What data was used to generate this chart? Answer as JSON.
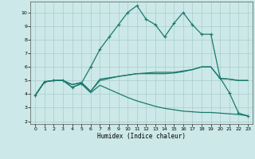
{
  "xlabel": "Humidex (Indice chaleur)",
  "ylabel": "",
  "bg_color": "#cce8e8",
  "grid_color": "#aacccc",
  "line_color": "#1a7a6e",
  "xlim": [
    -0.5,
    23.5
  ],
  "ylim": [
    1.8,
    10.8
  ],
  "yticks": [
    2,
    3,
    4,
    5,
    6,
    7,
    8,
    9,
    10
  ],
  "xticks": [
    0,
    1,
    2,
    3,
    4,
    5,
    6,
    7,
    8,
    9,
    10,
    11,
    12,
    13,
    14,
    15,
    16,
    17,
    18,
    19,
    20,
    21,
    22,
    23
  ],
  "line1_x": [
    0,
    1,
    2,
    3,
    4,
    5,
    6,
    7,
    8,
    9,
    10,
    11,
    12,
    13,
    14,
    15,
    16,
    17,
    18,
    19,
    20,
    21,
    22,
    23
  ],
  "line1_y": [
    3.9,
    4.9,
    5.0,
    5.0,
    4.5,
    4.8,
    6.0,
    7.3,
    8.2,
    9.1,
    10.0,
    10.5,
    9.5,
    9.1,
    8.2,
    9.2,
    10.0,
    9.1,
    8.4,
    8.4,
    5.2,
    4.1,
    2.6,
    2.4
  ],
  "line2_x": [
    0,
    1,
    2,
    3,
    4,
    5,
    6,
    7,
    8,
    9,
    10,
    11,
    12,
    13,
    14,
    15,
    16,
    17,
    18,
    19,
    20,
    21,
    22,
    23
  ],
  "line2_y": [
    3.9,
    4.9,
    5.0,
    5.0,
    4.7,
    4.85,
    4.2,
    5.1,
    5.2,
    5.3,
    5.4,
    5.5,
    5.5,
    5.5,
    5.5,
    5.55,
    5.65,
    5.8,
    6.0,
    6.0,
    5.15,
    5.1,
    5.0,
    5.0
  ],
  "line3_x": [
    0,
    1,
    2,
    3,
    4,
    5,
    6,
    7,
    8,
    9,
    10,
    11,
    12,
    13,
    14,
    15,
    16,
    17,
    18,
    19,
    20,
    21,
    22,
    23
  ],
  "line3_y": [
    3.9,
    4.9,
    5.0,
    5.0,
    4.7,
    4.85,
    4.2,
    5.0,
    5.15,
    5.3,
    5.4,
    5.5,
    5.55,
    5.6,
    5.6,
    5.6,
    5.7,
    5.8,
    6.0,
    6.0,
    5.15,
    5.1,
    5.0,
    5.0
  ],
  "line4_x": [
    0,
    1,
    2,
    3,
    4,
    5,
    6,
    7,
    8,
    9,
    10,
    11,
    12,
    13,
    14,
    15,
    16,
    17,
    18,
    19,
    20,
    21,
    22,
    23
  ],
  "line4_y": [
    3.9,
    4.9,
    5.0,
    5.0,
    4.5,
    4.75,
    4.1,
    4.65,
    4.35,
    4.05,
    3.75,
    3.5,
    3.3,
    3.1,
    2.95,
    2.85,
    2.75,
    2.7,
    2.65,
    2.65,
    2.6,
    2.55,
    2.5,
    2.4
  ]
}
